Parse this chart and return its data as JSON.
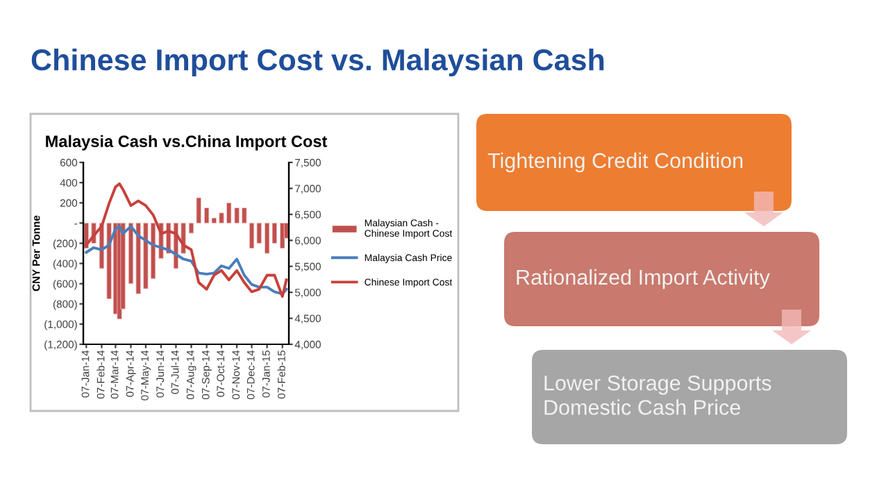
{
  "chart_data": [
    {
      "type": "other",
      "title": "Chinese Import Cost vs. Malaysian Cash",
      "annotations": [
        "Tightening Credit Condition",
        "Rationalized Import Activity",
        "Lower Storage Supports Domestic Cash Price"
      ],
      "colors": [
        "#ed7d31",
        "#c9796d",
        "#a6a6a6"
      ]
    },
    {
      "type": "bar",
      "title": "Malaysia Cash vs.China Import Cost",
      "ylabel": "CNY Per Tonne",
      "x": [
        "2014-01-07",
        "2014-01-22",
        "2014-02-07",
        "2014-02-22",
        "2014-03-07",
        "2014-03-15",
        "2014-03-22",
        "2014-04-07",
        "2014-04-22",
        "2014-05-07",
        "2014-05-22",
        "2014-06-07",
        "2014-06-22",
        "2014-07-07",
        "2014-07-22",
        "2014-08-07",
        "2014-08-22",
        "2014-09-07",
        "2014-09-22",
        "2014-10-07",
        "2014-10-22",
        "2014-11-07",
        "2014-11-22",
        "2014-12-07",
        "2014-12-22",
        "2015-01-07",
        "2015-01-22",
        "2015-02-07",
        "2015-02-15"
      ],
      "series": [
        {
          "name": "Malaysian Cash - Chinese Import Cost",
          "type": "bar",
          "color": "#c0504d",
          "values": [
            -250,
            -200,
            -450,
            -750,
            -900,
            -950,
            -850,
            -600,
            -700,
            -650,
            -550,
            -350,
            -300,
            -450,
            -300,
            -100,
            250,
            150,
            50,
            100,
            200,
            150,
            150,
            -250,
            -200,
            -300,
            -200,
            -250,
            -150
          ]
        },
        {
          "name": "Malaysia Cash Price",
          "type": "line",
          "axis": "y2",
          "color": "#4a7ebb",
          "values": [
            5770,
            5860,
            5820,
            5910,
            6220,
            6270,
            6130,
            6270,
            6090,
            6000,
            5910,
            5860,
            5820,
            5730,
            5640,
            5600,
            5370,
            5350,
            5370,
            5510,
            5460,
            5640,
            5330,
            5150,
            5100,
            5100,
            5010,
            4970,
            5060
          ]
        },
        {
          "name": "Chinese Import Cost",
          "type": "line",
          "axis": "y2",
          "color": "#c8403a",
          "values": [
            5910,
            6090,
            6270,
            6710,
            7030,
            7090,
            6980,
            6670,
            6760,
            6670,
            6490,
            6130,
            6180,
            6130,
            5910,
            5820,
            5190,
            5060,
            5330,
            5420,
            5240,
            5420,
            5190,
            5010,
            5060,
            5330,
            5330,
            4920,
            5240
          ]
        }
      ],
      "xlim": [
        "2014-01-01",
        "2015-02-20"
      ],
      "xticks": [
        {
          "value": "2014-01-07",
          "label": "07-Jan-14"
        },
        {
          "value": "2014-02-07",
          "label": "07-Feb-14"
        },
        {
          "value": "2014-03-07",
          "label": "07-Mar-14"
        },
        {
          "value": "2014-04-07",
          "label": "07-Apr-14"
        },
        {
          "value": "2014-05-07",
          "label": "07-May-14"
        },
        {
          "value": "2014-06-07",
          "label": "07-Jun-14"
        },
        {
          "value": "2014-07-07",
          "label": "07-Jul-14"
        },
        {
          "value": "2014-08-07",
          "label": "07-Aug-14"
        },
        {
          "value": "2014-09-07",
          "label": "07-Sep-14"
        },
        {
          "value": "2014-10-07",
          "label": "07-Oct-14"
        },
        {
          "value": "2014-11-07",
          "label": "07-Nov-14"
        },
        {
          "value": "2014-12-07",
          "label": "07-Dec-14"
        },
        {
          "value": "2015-01-07",
          "label": "07-Jan-15"
        },
        {
          "value": "2015-02-07",
          "label": "07-Feb-15"
        }
      ],
      "ylim": [
        -1200,
        600
      ],
      "yticks": [
        {
          "value": -1200,
          "label": "(1,200)"
        },
        {
          "value": -1000,
          "label": "(1,000)"
        },
        {
          "value": -800,
          "label": "(800)"
        },
        {
          "value": -600,
          "label": "(600)"
        },
        {
          "value": -400,
          "label": "(400)"
        },
        {
          "value": -200,
          "label": "(200)"
        },
        {
          "value": 0,
          "label": "-"
        },
        200,
        400,
        600
      ],
      "y2lim": [
        4000,
        7500
      ],
      "y2ticks": [
        {
          "value": 4000,
          "label": "4,000"
        },
        {
          "value": 4500,
          "label": "4,500"
        },
        {
          "value": 5000,
          "label": "5,000"
        },
        {
          "value": 5500,
          "label": "5,500"
        },
        {
          "value": 6000,
          "label": "6,000"
        },
        {
          "value": 6500,
          "label": "6,500"
        },
        {
          "value": 7000,
          "label": "7,000"
        },
        {
          "value": 7500,
          "label": "7,500"
        }
      ],
      "grid": false,
      "legend": "right",
      "marker": "none",
      "line_style": "solid"
    }
  ]
}
